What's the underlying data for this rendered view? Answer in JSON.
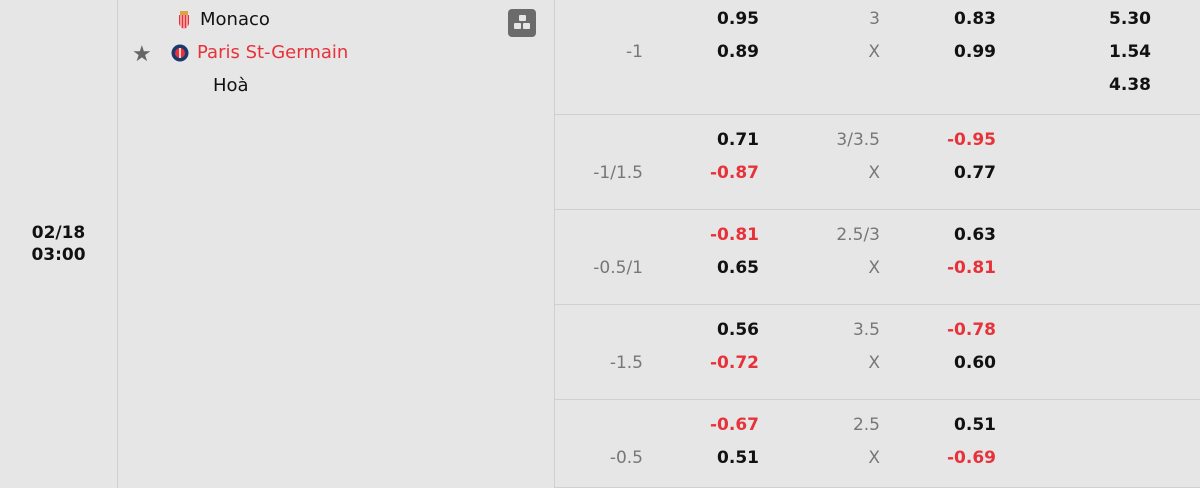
{
  "match": {
    "date": "02/18",
    "time": "03:00",
    "home": "Monaco",
    "away": "Paris St-Germain",
    "draw_label": "Hoà",
    "away_color": "#e8323a"
  },
  "markets": [
    {
      "hcap": "-1",
      "home": "0.95",
      "away": "0.89",
      "total": "3",
      "x": "X",
      "over": "0.83",
      "under": "0.99",
      "one_x_two": [
        "5.30",
        "1.54",
        "4.38"
      ]
    },
    {
      "hcap": "-1/1.5",
      "home": "0.71",
      "away": "-0.87",
      "total": "3/3.5",
      "x": "X",
      "over": "-0.95",
      "under": "0.77"
    },
    {
      "hcap": "-0.5/1",
      "home": "-0.81",
      "away": "0.65",
      "total": "2.5/3",
      "x": "X",
      "over": "0.63",
      "under": "-0.81"
    },
    {
      "hcap": "-1.5",
      "home": "0.56",
      "away": "-0.72",
      "total": "3.5",
      "x": "X",
      "over": "-0.78",
      "under": "0.60"
    },
    {
      "hcap": "-0.5",
      "home": "-0.67",
      "away": "0.51",
      "total": "2.5",
      "x": "X",
      "over": "0.51",
      "under": "-0.69"
    }
  ]
}
